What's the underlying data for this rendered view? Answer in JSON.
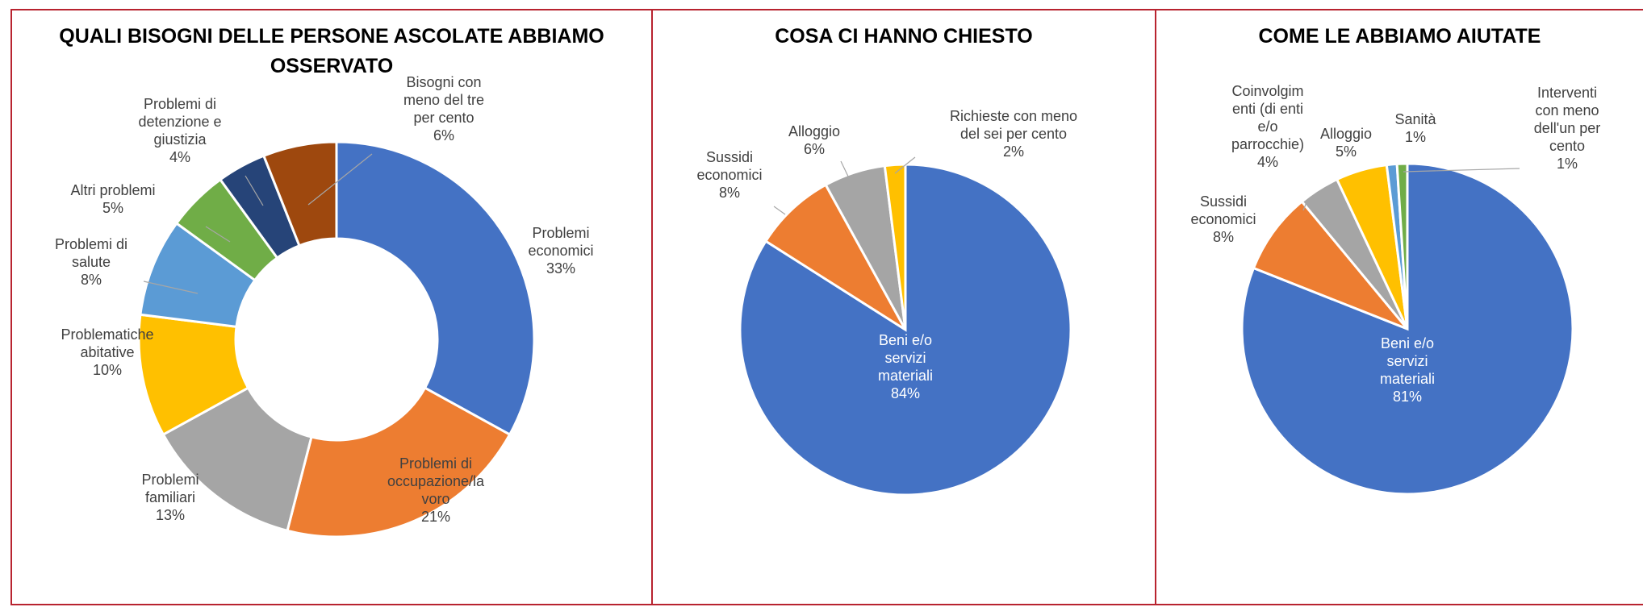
{
  "colors": {
    "blue": "#4472c4",
    "orange": "#ed7d31",
    "gray": "#a5a5a5",
    "yellow": "#ffc000",
    "lightblue": "#5b9bd5",
    "green": "#70ad47",
    "navy": "#264478",
    "brown": "#9e480e",
    "border": "#b8232f"
  },
  "chart_data": [
    {
      "type": "pie",
      "donut": true,
      "title": "QUALI BISOGNI DELLE PERSONE ASCOLATE ABBIAMO OSSERVATO",
      "slices": [
        {
          "label": "Problemi economici",
          "value": 33,
          "pct": "33%",
          "color": "blue"
        },
        {
          "label": "Problemi di occupazione/la voro",
          "value": 21,
          "pct": "21%",
          "color": "orange"
        },
        {
          "label": "Problemi familiari",
          "value": 13,
          "pct": "13%",
          "color": "gray"
        },
        {
          "label": "Problematiche abitative",
          "value": 10,
          "pct": "10%",
          "color": "yellow"
        },
        {
          "label": "Problemi di salute",
          "value": 8,
          "pct": "8%",
          "color": "lightblue"
        },
        {
          "label": "Altri problemi",
          "value": 5,
          "pct": "5%",
          "color": "green"
        },
        {
          "label": "Problemi di detenzione e giustizia",
          "value": 4,
          "pct": "4%",
          "color": "navy"
        },
        {
          "label": "Bisogni con meno del tre per cento",
          "value": 6,
          "pct": "6%",
          "color": "brown"
        }
      ]
    },
    {
      "type": "pie",
      "title": "COSA CI HANNO CHIESTO",
      "slices": [
        {
          "label": "Beni e/o servizi materiali",
          "value": 84,
          "pct": "84%",
          "color": "blue"
        },
        {
          "label": "Sussidi economici",
          "value": 8,
          "pct": "8%",
          "color": "orange"
        },
        {
          "label": "Alloggio",
          "value": 6,
          "pct": "6%",
          "color": "gray"
        },
        {
          "label": "Richieste con meno del sei per cento",
          "value": 2,
          "pct": "2%",
          "color": "yellow"
        }
      ]
    },
    {
      "type": "pie",
      "title": "COME LE ABBIAMO AIUTATE",
      "slices": [
        {
          "label": "Beni e/o servizi materiali",
          "value": 81,
          "pct": "81%",
          "color": "blue"
        },
        {
          "label": "Sussidi economici",
          "value": 8,
          "pct": "8%",
          "color": "orange"
        },
        {
          "label": "Coinvolgimenti (di enti e/o parrocchie)",
          "value": 4,
          "pct": "4%",
          "color": "gray"
        },
        {
          "label": "Alloggio",
          "value": 5,
          "pct": "5%",
          "color": "yellow"
        },
        {
          "label": "Sanità",
          "value": 1,
          "pct": "1%",
          "color": "lightblue"
        },
        {
          "label": "Interventi con meno dell'un per cento",
          "value": 1,
          "pct": "1%",
          "color": "green"
        }
      ]
    }
  ],
  "label_lines": [
    [
      [
        "Problemi",
        "economici",
        "33%"
      ],
      [
        "Problemi di",
        "occupazione/la",
        "voro",
        "21%"
      ],
      [
        "Problemi",
        "familiari",
        "13%"
      ],
      [
        "Problematiche",
        "abitative",
        "10%"
      ],
      [
        "Problemi di",
        "salute",
        "8%"
      ],
      [
        "Altri problemi",
        "5%"
      ],
      [
        "Problemi di",
        "detenzione e",
        "giustizia",
        "4%"
      ],
      [
        "Bisogni con",
        "meno del tre",
        "per cento",
        "6%"
      ]
    ],
    [
      [
        "Beni e/o",
        "servizi",
        "materiali",
        "84%"
      ],
      [
        "Sussidi",
        "economici",
        "8%"
      ],
      [
        "Alloggio",
        "6%"
      ],
      [
        "Richieste con meno",
        "del sei per cento",
        "2%"
      ]
    ],
    [
      [
        "Beni e/o",
        "servizi",
        "materiali",
        "81%"
      ],
      [
        "Sussidi",
        "economici",
        "8%"
      ],
      [
        "Coinvolgim",
        "enti (di enti",
        "e/o",
        "parrocchie)",
        "4%"
      ],
      [
        "Alloggio",
        "5%"
      ],
      [
        "Sanità",
        "1%"
      ],
      [
        "Interventi",
        "con meno",
        "dell'un per",
        "cento",
        "1%"
      ]
    ]
  ]
}
